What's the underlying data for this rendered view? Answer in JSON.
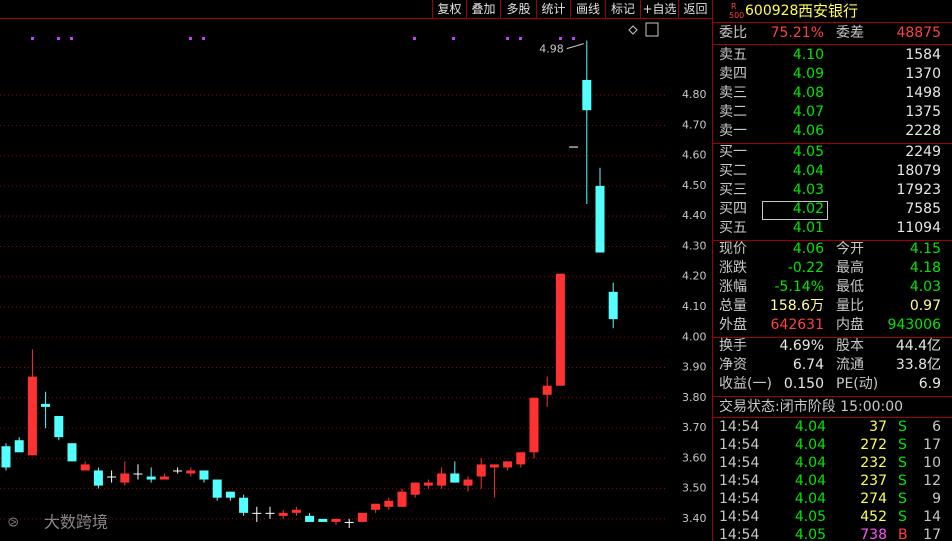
{
  "toolbar": [
    "复权",
    "叠加",
    "多股",
    "统计",
    "画线",
    "标记",
    "+自选",
    "返回"
  ],
  "chart_data": {
    "type": "candlestick",
    "open": [
      3.64,
      3.66,
      3.61,
      3.78,
      3.74,
      3.65,
      3.56,
      3.56,
      3.54,
      3.52,
      3.55,
      3.54,
      3.53,
      3.56,
      3.55,
      3.56,
      3.53,
      3.49,
      3.47,
      3.42,
      3.42,
      3.41,
      3.42,
      3.41,
      3.4,
      3.39,
      3.39,
      3.39,
      3.43,
      3.44,
      3.44,
      3.48,
      3.51,
      3.51,
      3.55,
      3.51,
      3.54,
      3.57,
      3.57,
      3.58,
      3.62,
      3.81,
      3.84,
      4.63,
      4.85,
      4.5,
      4.15
    ],
    "high": [
      3.65,
      3.67,
      3.96,
      3.82,
      3.74,
      3.65,
      3.59,
      3.57,
      3.56,
      3.59,
      3.58,
      3.57,
      3.55,
      3.57,
      3.57,
      3.56,
      3.53,
      3.49,
      3.48,
      3.44,
      3.44,
      3.43,
      3.44,
      3.42,
      3.4,
      3.4,
      3.4,
      3.42,
      3.45,
      3.47,
      3.5,
      3.52,
      3.53,
      3.57,
      3.59,
      3.54,
      3.6,
      3.58,
      3.59,
      3.62,
      3.8,
      3.87,
      4.21,
      4.63,
      4.98,
      4.56,
      4.18
    ],
    "low": [
      3.56,
      3.62,
      3.61,
      3.7,
      3.66,
      3.59,
      3.56,
      3.5,
      3.52,
      3.51,
      3.53,
      3.52,
      3.53,
      3.55,
      3.54,
      3.52,
      3.46,
      3.46,
      3.41,
      3.39,
      3.4,
      3.4,
      3.41,
      3.39,
      3.39,
      3.38,
      3.37,
      3.39,
      3.42,
      3.43,
      3.44,
      3.47,
      3.5,
      3.5,
      3.52,
      3.49,
      3.5,
      3.47,
      3.56,
      3.57,
      3.6,
      3.77,
      3.84,
      4.63,
      4.44,
      4.28,
      4.03
    ],
    "close": [
      3.57,
      3.62,
      3.87,
      3.77,
      3.67,
      3.59,
      3.58,
      3.51,
      3.54,
      3.55,
      3.55,
      3.53,
      3.54,
      3.56,
      3.56,
      3.53,
      3.47,
      3.47,
      3.42,
      3.42,
      3.42,
      3.42,
      3.43,
      3.39,
      3.39,
      3.4,
      3.39,
      3.42,
      3.45,
      3.46,
      3.49,
      3.52,
      3.52,
      3.55,
      3.52,
      3.53,
      3.58,
      3.58,
      3.59,
      3.62,
      3.8,
      3.84,
      4.21,
      4.63,
      4.75,
      4.28,
      4.06
    ],
    "up_color": "#ff3232",
    "down_color": "#54ffff",
    "flat_color": "#ffffff",
    "ylim": [
      3.327,
      5.048
    ],
    "yticks": [
      {
        "value": 3.4,
        "label": "3.40"
      },
      {
        "value": 3.5,
        "label": "3.50"
      },
      {
        "value": 3.6,
        "label": "3.60"
      },
      {
        "value": 3.7,
        "label": "3.70"
      },
      {
        "value": 3.8,
        "label": "3.80"
      },
      {
        "value": 3.9,
        "label": "3.90"
      },
      {
        "value": 4.0,
        "label": "4.00"
      },
      {
        "value": 4.1,
        "label": "4.10"
      },
      {
        "value": 4.2,
        "label": "4.20"
      },
      {
        "value": 4.3,
        "label": "4.30"
      },
      {
        "value": 4.4,
        "label": "4.40"
      },
      {
        "value": 4.5,
        "label": "4.50"
      },
      {
        "value": 4.6,
        "label": "4.60"
      },
      {
        "value": 4.7,
        "label": "4.70"
      },
      {
        "value": 4.8,
        "label": "4.80"
      }
    ],
    "grid": true
  },
  "watermark": "大数跨境",
  "quote": {
    "badge": [
      "R",
      "500"
    ],
    "code": "600928",
    "name": "西安银行",
    "ratio": {
      "rows": [
        [
          "委比",
          "75.21%",
          "委差",
          "48875"
        ]
      ],
      "colors": [
        [
          "#c8c8c8",
          "#ff4040",
          "#c8c8c8",
          "#ff4040"
        ]
      ]
    },
    "sell": {
      "rows": [
        [
          "卖五",
          "4.10",
          "1584"
        ],
        [
          "卖四",
          "4.09",
          "1370"
        ],
        [
          "卖三",
          "4.08",
          "1498"
        ],
        [
          "卖二",
          "4.07",
          "1375"
        ],
        [
          "卖一",
          "4.06",
          "2228"
        ]
      ],
      "colors": [
        "#c8c8c8",
        "#00e600",
        "#e8e8e8"
      ]
    },
    "buy": {
      "rows": [
        [
          "买一",
          "4.05",
          "2249"
        ],
        [
          "买二",
          "4.04",
          "18079"
        ],
        [
          "买三",
          "4.03",
          "17923"
        ],
        [
          "买四",
          "4.02",
          "7585"
        ],
        [
          "买五",
          "4.01",
          "11094"
        ]
      ],
      "colors": [
        "#c8c8c8",
        "#00e600",
        "#e8e8e8"
      ]
    },
    "stats": {
      "rows": [
        [
          "现价",
          "4.06",
          "今开",
          "4.15"
        ],
        [
          "涨跌",
          "-0.22",
          "最高",
          "4.18"
        ],
        [
          "涨幅",
          "-5.14%",
          "最低",
          "4.03"
        ],
        [
          "总量",
          "158.6万",
          "量比",
          "0.97"
        ],
        [
          "外盘",
          "642631",
          "内盘",
          "943006"
        ]
      ],
      "colors": [
        [
          "#c8c8c8",
          "#00e600",
          "#c8c8c8",
          "#00e600"
        ],
        [
          "#c8c8c8",
          "#00e600",
          "#c8c8c8",
          "#00e600"
        ],
        [
          "#c8c8c8",
          "#00e600",
          "#c8c8c8",
          "#00e600"
        ],
        [
          "#c8c8c8",
          "#ffff9c",
          "#c8c8c8",
          "#ffff9c"
        ],
        [
          "#c8c8c8",
          "#ff4040",
          "#c8c8c8",
          "#00e600"
        ]
      ]
    },
    "finance": {
      "rows": [
        [
          "换手",
          "4.69%",
          "股本",
          "44.4亿"
        ],
        [
          "净资",
          "6.74",
          "流通",
          "33.8亿"
        ],
        [
          "收益(一)",
          "0.150",
          "PE(动)",
          "6.9"
        ]
      ],
      "colors": [
        [
          "#c8c8c8",
          "#e8e8e8",
          "#c8c8c8",
          "#e8e8e8"
        ],
        [
          "#c8c8c8",
          "#e8e8e8",
          "#c8c8c8",
          "#e8e8e8"
        ],
        [
          "#c8c8c8",
          "#e8e8e8",
          "#c8c8c8",
          "#e8e8e8"
        ]
      ]
    },
    "status": "交易状态:闭市阶段 15:00:00",
    "trades": {
      "rows": [
        [
          "14:54",
          "4.04",
          "37",
          "S",
          "6"
        ],
        [
          "14:54",
          "4.04",
          "272",
          "S",
          "17"
        ],
        [
          "14:54",
          "4.04",
          "232",
          "S",
          "10"
        ],
        [
          "14:54",
          "4.04",
          "237",
          "S",
          "12"
        ],
        [
          "14:54",
          "4.04",
          "274",
          "S",
          "9"
        ],
        [
          "14:54",
          "4.05",
          "452",
          "S",
          "14"
        ],
        [
          "14:54",
          "4.05",
          "738",
          "B",
          "17"
        ]
      ],
      "colors": [
        [
          "#c8c8c8",
          "#00e600",
          "#ffff54",
          "#00e600",
          "#c8c8c8"
        ],
        [
          "#c8c8c8",
          "#00e600",
          "#ffff54",
          "#00e600",
          "#c8c8c8"
        ],
        [
          "#c8c8c8",
          "#00e600",
          "#ffff54",
          "#00e600",
          "#c8c8c8"
        ],
        [
          "#c8c8c8",
          "#00e600",
          "#ffff54",
          "#00e600",
          "#c8c8c8"
        ],
        [
          "#c8c8c8",
          "#00e600",
          "#ffff54",
          "#00e600",
          "#c8c8c8"
        ],
        [
          "#c8c8c8",
          "#00e600",
          "#ffff54",
          "#00e600",
          "#c8c8c8"
        ],
        [
          "#c8c8c8",
          "#00e600",
          "#ff54ff",
          "#ff4040",
          "#c8c8c8"
        ]
      ]
    }
  }
}
